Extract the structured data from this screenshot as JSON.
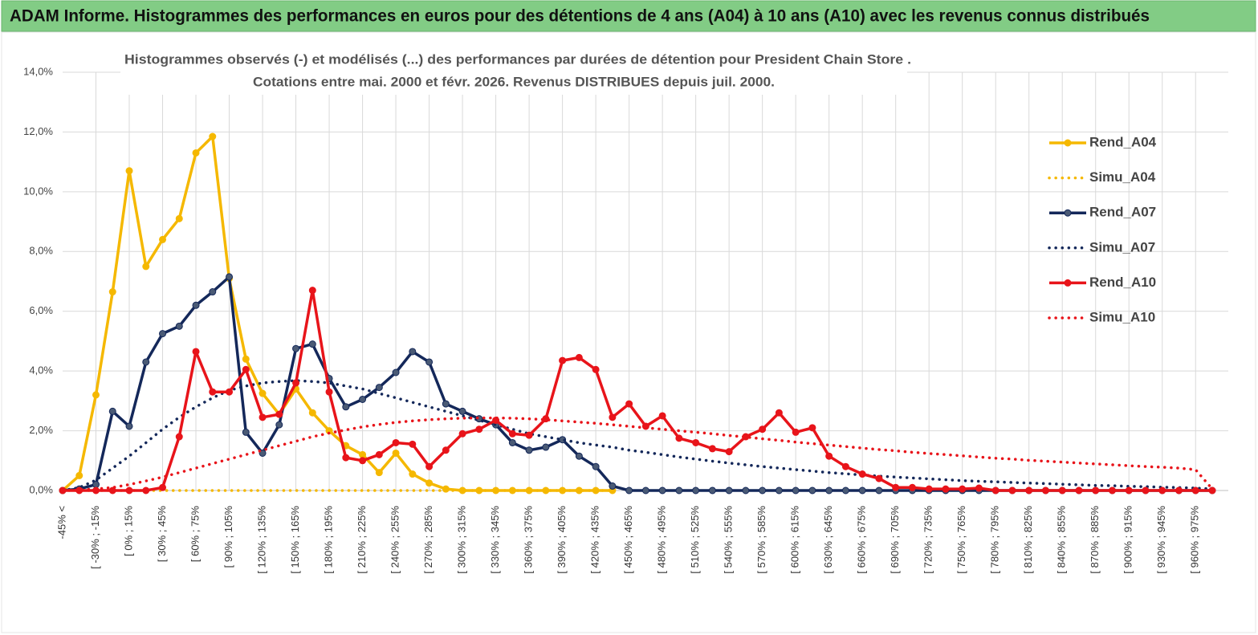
{
  "header": {
    "title": "ADAM Informe. Histogrammes des performances en euros pour des détentions de 4 ans (A04) à 10 ans (A10) avec les revenus connus distribués"
  },
  "chart_data": {
    "type": "line",
    "title": "Histogrammes observés (-) et modélisés (...) des performances par durées de détention pour President Chain Store .",
    "subtitle": "Cotations entre mai. 2000 et févr. 2026. Revenus DISTRIBUES depuis juil. 2000.",
    "categories": [
      "-45% <",
      null,
      "[ -30% ; -15%",
      null,
      "[ 0% ; 15%",
      null,
      "[ 30% ; 45%",
      null,
      "[ 60% ; 75%",
      null,
      "[ 90% ; 105%",
      null,
      "[ 120% ; 135%",
      null,
      "[ 150% ; 165%",
      null,
      "[ 180% ; 195%",
      null,
      "[ 210% ; 225%",
      null,
      "[ 240% ; 255%",
      null,
      "[ 270% ; 285%",
      null,
      "[ 300% ; 315%",
      null,
      "[ 330% ; 345%",
      null,
      "[ 360% ; 375%",
      null,
      "[ 390% ; 405%",
      null,
      "[ 420% ; 435%",
      null,
      "[ 450% ; 465%",
      null,
      "[ 480% ; 495%",
      null,
      "[ 510% ; 525%",
      null,
      "[ 540% ; 555%",
      null,
      "[ 570% ; 585%",
      null,
      "[ 600% ; 615%",
      null,
      "[ 630% ; 645%",
      null,
      "[ 660% ; 675%",
      null,
      "[ 690% ; 705%",
      null,
      "[ 720% ; 735%",
      null,
      "[ 750% ; 765%",
      null,
      "[ 780% ; 795%",
      null,
      "[ 810% ; 825%",
      null,
      "[ 840% ; 855%",
      null,
      "[ 870% ; 885%",
      null,
      "[ 900% ; 915%",
      null,
      "[ 930% ; 945%",
      null,
      "[ 960% ; 975%",
      null
    ],
    "ylim": [
      0,
      14
    ],
    "yticks": [
      {
        "value": 0,
        "label": "0,0%"
      },
      {
        "value": 2,
        "label": "2,0%"
      },
      {
        "value": 4,
        "label": "4,0%"
      },
      {
        "value": 6,
        "label": "6,0%"
      },
      {
        "value": 8,
        "label": "8,0%"
      },
      {
        "value": 10,
        "label": "10,0%"
      },
      {
        "value": 12,
        "label": "12,0%"
      },
      {
        "value": 14,
        "label": "14,0%"
      }
    ],
    "grid": true,
    "legend": "right",
    "series": [
      {
        "name": "Rend_A04",
        "color": "#f5b800",
        "dotted": false,
        "markers": true,
        "values": [
          0,
          0.5,
          3.2,
          6.65,
          10.7,
          7.5,
          8.4,
          9.1,
          11.3,
          11.85,
          7.1,
          4.4,
          3.25,
          2.55,
          3.4,
          2.6,
          2.0,
          1.5,
          1.2,
          0.6,
          1.25,
          0.55,
          0.25,
          0.05,
          0,
          0,
          0,
          0,
          0,
          0,
          0,
          0,
          0,
          0,
          null,
          null,
          null,
          null,
          null,
          null,
          null,
          null,
          null,
          null,
          null,
          null,
          null,
          null,
          null,
          null,
          null,
          null,
          null,
          null,
          null,
          null,
          null,
          null,
          null,
          null,
          null,
          null,
          null,
          null,
          null,
          null,
          null,
          null,
          null,
          null
        ]
      },
      {
        "name": "Simu_A04",
        "color": "#f5b800",
        "dotted": true,
        "markers": false,
        "values": [
          0,
          0,
          0,
          0,
          0,
          0,
          0,
          0,
          0,
          0,
          0,
          0,
          0,
          0,
          0,
          0,
          0,
          0,
          0,
          0,
          0,
          0,
          0,
          0,
          0,
          0,
          0,
          0,
          0,
          0,
          0,
          0,
          0,
          0,
          null,
          null,
          null,
          null,
          null,
          null,
          null,
          null,
          null,
          null,
          null,
          null,
          null,
          null,
          null,
          null,
          null,
          null,
          null,
          null,
          null,
          null,
          null,
          null,
          null,
          null,
          null,
          null,
          null,
          null,
          null,
          null,
          null,
          null,
          null,
          null
        ]
      },
      {
        "name": "Rend_A07",
        "color": "#14285a",
        "dotted": false,
        "markers": true,
        "values": [
          0,
          0.05,
          0.2,
          2.65,
          2.15,
          4.3,
          5.25,
          5.5,
          6.2,
          6.65,
          7.15,
          1.95,
          1.25,
          2.2,
          4.75,
          4.9,
          3.75,
          2.8,
          3.05,
          3.45,
          3.95,
          4.65,
          4.3,
          2.9,
          2.65,
          2.4,
          2.2,
          1.6,
          1.35,
          1.45,
          1.7,
          1.15,
          0.8,
          0.15,
          0,
          0,
          0,
          0,
          0,
          0,
          0,
          0,
          0,
          0,
          0,
          0,
          0,
          0,
          0,
          0,
          0,
          0,
          0,
          0,
          0,
          0,
          0,
          0,
          0,
          0,
          0,
          0,
          0,
          0,
          0,
          0,
          0,
          0,
          0,
          0
        ]
      },
      {
        "name": "Simu_A07",
        "color": "#14285a",
        "dotted": true,
        "markers": false,
        "values": [
          0,
          0.1,
          0.35,
          0.75,
          1.15,
          1.6,
          2.05,
          2.45,
          2.8,
          3.1,
          3.35,
          3.5,
          3.6,
          3.65,
          3.68,
          3.65,
          3.6,
          3.5,
          3.4,
          3.25,
          3.1,
          2.95,
          2.8,
          2.65,
          2.5,
          2.35,
          2.2,
          2.05,
          1.9,
          1.8,
          1.7,
          1.6,
          1.52,
          1.45,
          1.35,
          1.28,
          1.2,
          1.12,
          1.05,
          0.98,
          0.92,
          0.86,
          0.8,
          0.75,
          0.7,
          0.65,
          0.6,
          0.56,
          0.52,
          0.48,
          0.45,
          0.42,
          0.39,
          0.36,
          0.33,
          0.31,
          0.29,
          0.27,
          0.25,
          0.23,
          0.21,
          0.19,
          0.17,
          0.16,
          0.14,
          0.13,
          0.11,
          0.1,
          0.08,
          0.05
        ]
      },
      {
        "name": "Rend_A10",
        "color": "#e8141a",
        "dotted": false,
        "markers": true,
        "values": [
          0,
          0,
          0,
          0,
          0,
          0,
          0.1,
          1.8,
          4.65,
          3.3,
          3.3,
          4.05,
          2.45,
          2.55,
          3.6,
          6.7,
          3.3,
          1.1,
          1.0,
          1.2,
          1.6,
          1.55,
          0.8,
          1.35,
          1.9,
          2.05,
          2.35,
          1.9,
          1.85,
          2.4,
          4.35,
          4.45,
          4.05,
          2.45,
          2.9,
          2.15,
          2.5,
          1.75,
          1.6,
          1.4,
          1.3,
          1.8,
          2.05,
          2.6,
          1.95,
          2.1,
          1.15,
          0.8,
          0.55,
          0.4,
          0.1,
          0.1,
          0.05,
          0.05,
          0.05,
          0.08,
          0,
          0,
          0,
          0,
          0,
          0,
          0,
          0,
          0,
          0,
          0,
          0,
          0,
          0
        ]
      },
      {
        "name": "Simu_A10",
        "color": "#e8141a",
        "dotted": true,
        "markers": false,
        "values": [
          0,
          0.02,
          0.05,
          0.1,
          0.2,
          0.32,
          0.45,
          0.6,
          0.75,
          0.9,
          1.05,
          1.2,
          1.35,
          1.5,
          1.65,
          1.8,
          1.92,
          2.03,
          2.13,
          2.21,
          2.28,
          2.33,
          2.37,
          2.4,
          2.42,
          2.43,
          2.43,
          2.42,
          2.4,
          2.37,
          2.33,
          2.29,
          2.25,
          2.2,
          2.15,
          2.1,
          2.05,
          2.0,
          1.95,
          1.9,
          1.84,
          1.79,
          1.73,
          1.68,
          1.62,
          1.57,
          1.52,
          1.47,
          1.42,
          1.37,
          1.33,
          1.28,
          1.24,
          1.2,
          1.16,
          1.12,
          1.08,
          1.05,
          1.01,
          0.98,
          0.95,
          0.92,
          0.89,
          0.86,
          0.83,
          0.8,
          0.78,
          0.75,
          0.7,
          0.05
        ]
      }
    ]
  }
}
